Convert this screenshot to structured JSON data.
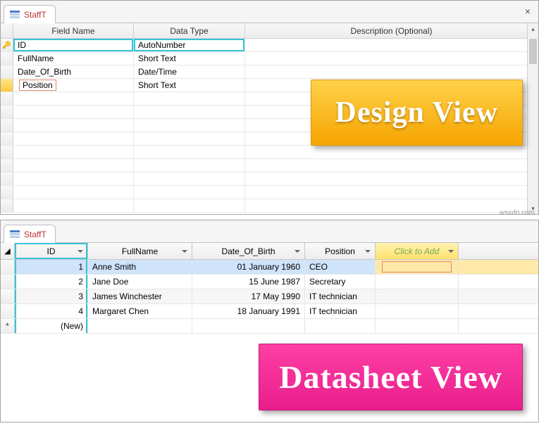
{
  "tab_title": "StaffT",
  "design": {
    "headers": {
      "field": "Field Name",
      "type": "Data Type",
      "desc": "Description (Optional)"
    },
    "rows": [
      {
        "field": "ID",
        "type": "AutoNumber",
        "pk": true
      },
      {
        "field": "FullName",
        "type": "Short Text",
        "pk": false
      },
      {
        "field": "Date_Of_Birth",
        "type": "Date/Time",
        "pk": false
      },
      {
        "field": "Position",
        "type": "Short Text",
        "pk": false,
        "editing": true
      }
    ],
    "empty_rows": 9,
    "highlight_color": "#35c3da"
  },
  "datasheet": {
    "headers": {
      "id": "ID",
      "name": "FullName",
      "dob": "Date_Of_Birth",
      "pos": "Position",
      "add": "Click to Add"
    },
    "rows": [
      {
        "id": "1",
        "name": "Anne Smith",
        "dob": "01 January 1960",
        "pos": "CEO",
        "selected": true
      },
      {
        "id": "2",
        "name": "Jane Doe",
        "dob": "15 June 1987",
        "pos": "Secretary",
        "selected": false
      },
      {
        "id": "3",
        "name": "James Winchester",
        "dob": "17 May 1990",
        "pos": "IT technician",
        "selected": false
      },
      {
        "id": "4",
        "name": "Margaret Chen",
        "dob": "18 January 1991",
        "pos": "IT technician",
        "selected": false
      }
    ],
    "new_row_label": "(New)"
  },
  "badges": {
    "design": "Design View",
    "datasheet": "Datasheet View"
  },
  "colors": {
    "badge_yellow_top": "#ffd24a",
    "badge_yellow_bottom": "#f6a400",
    "badge_pink_top": "#ff3fa4",
    "badge_pink_bottom": "#e81e8c",
    "highlight": "#35c3da",
    "row_select": "#ffe9a8"
  },
  "watermark": "wsxdn.com"
}
